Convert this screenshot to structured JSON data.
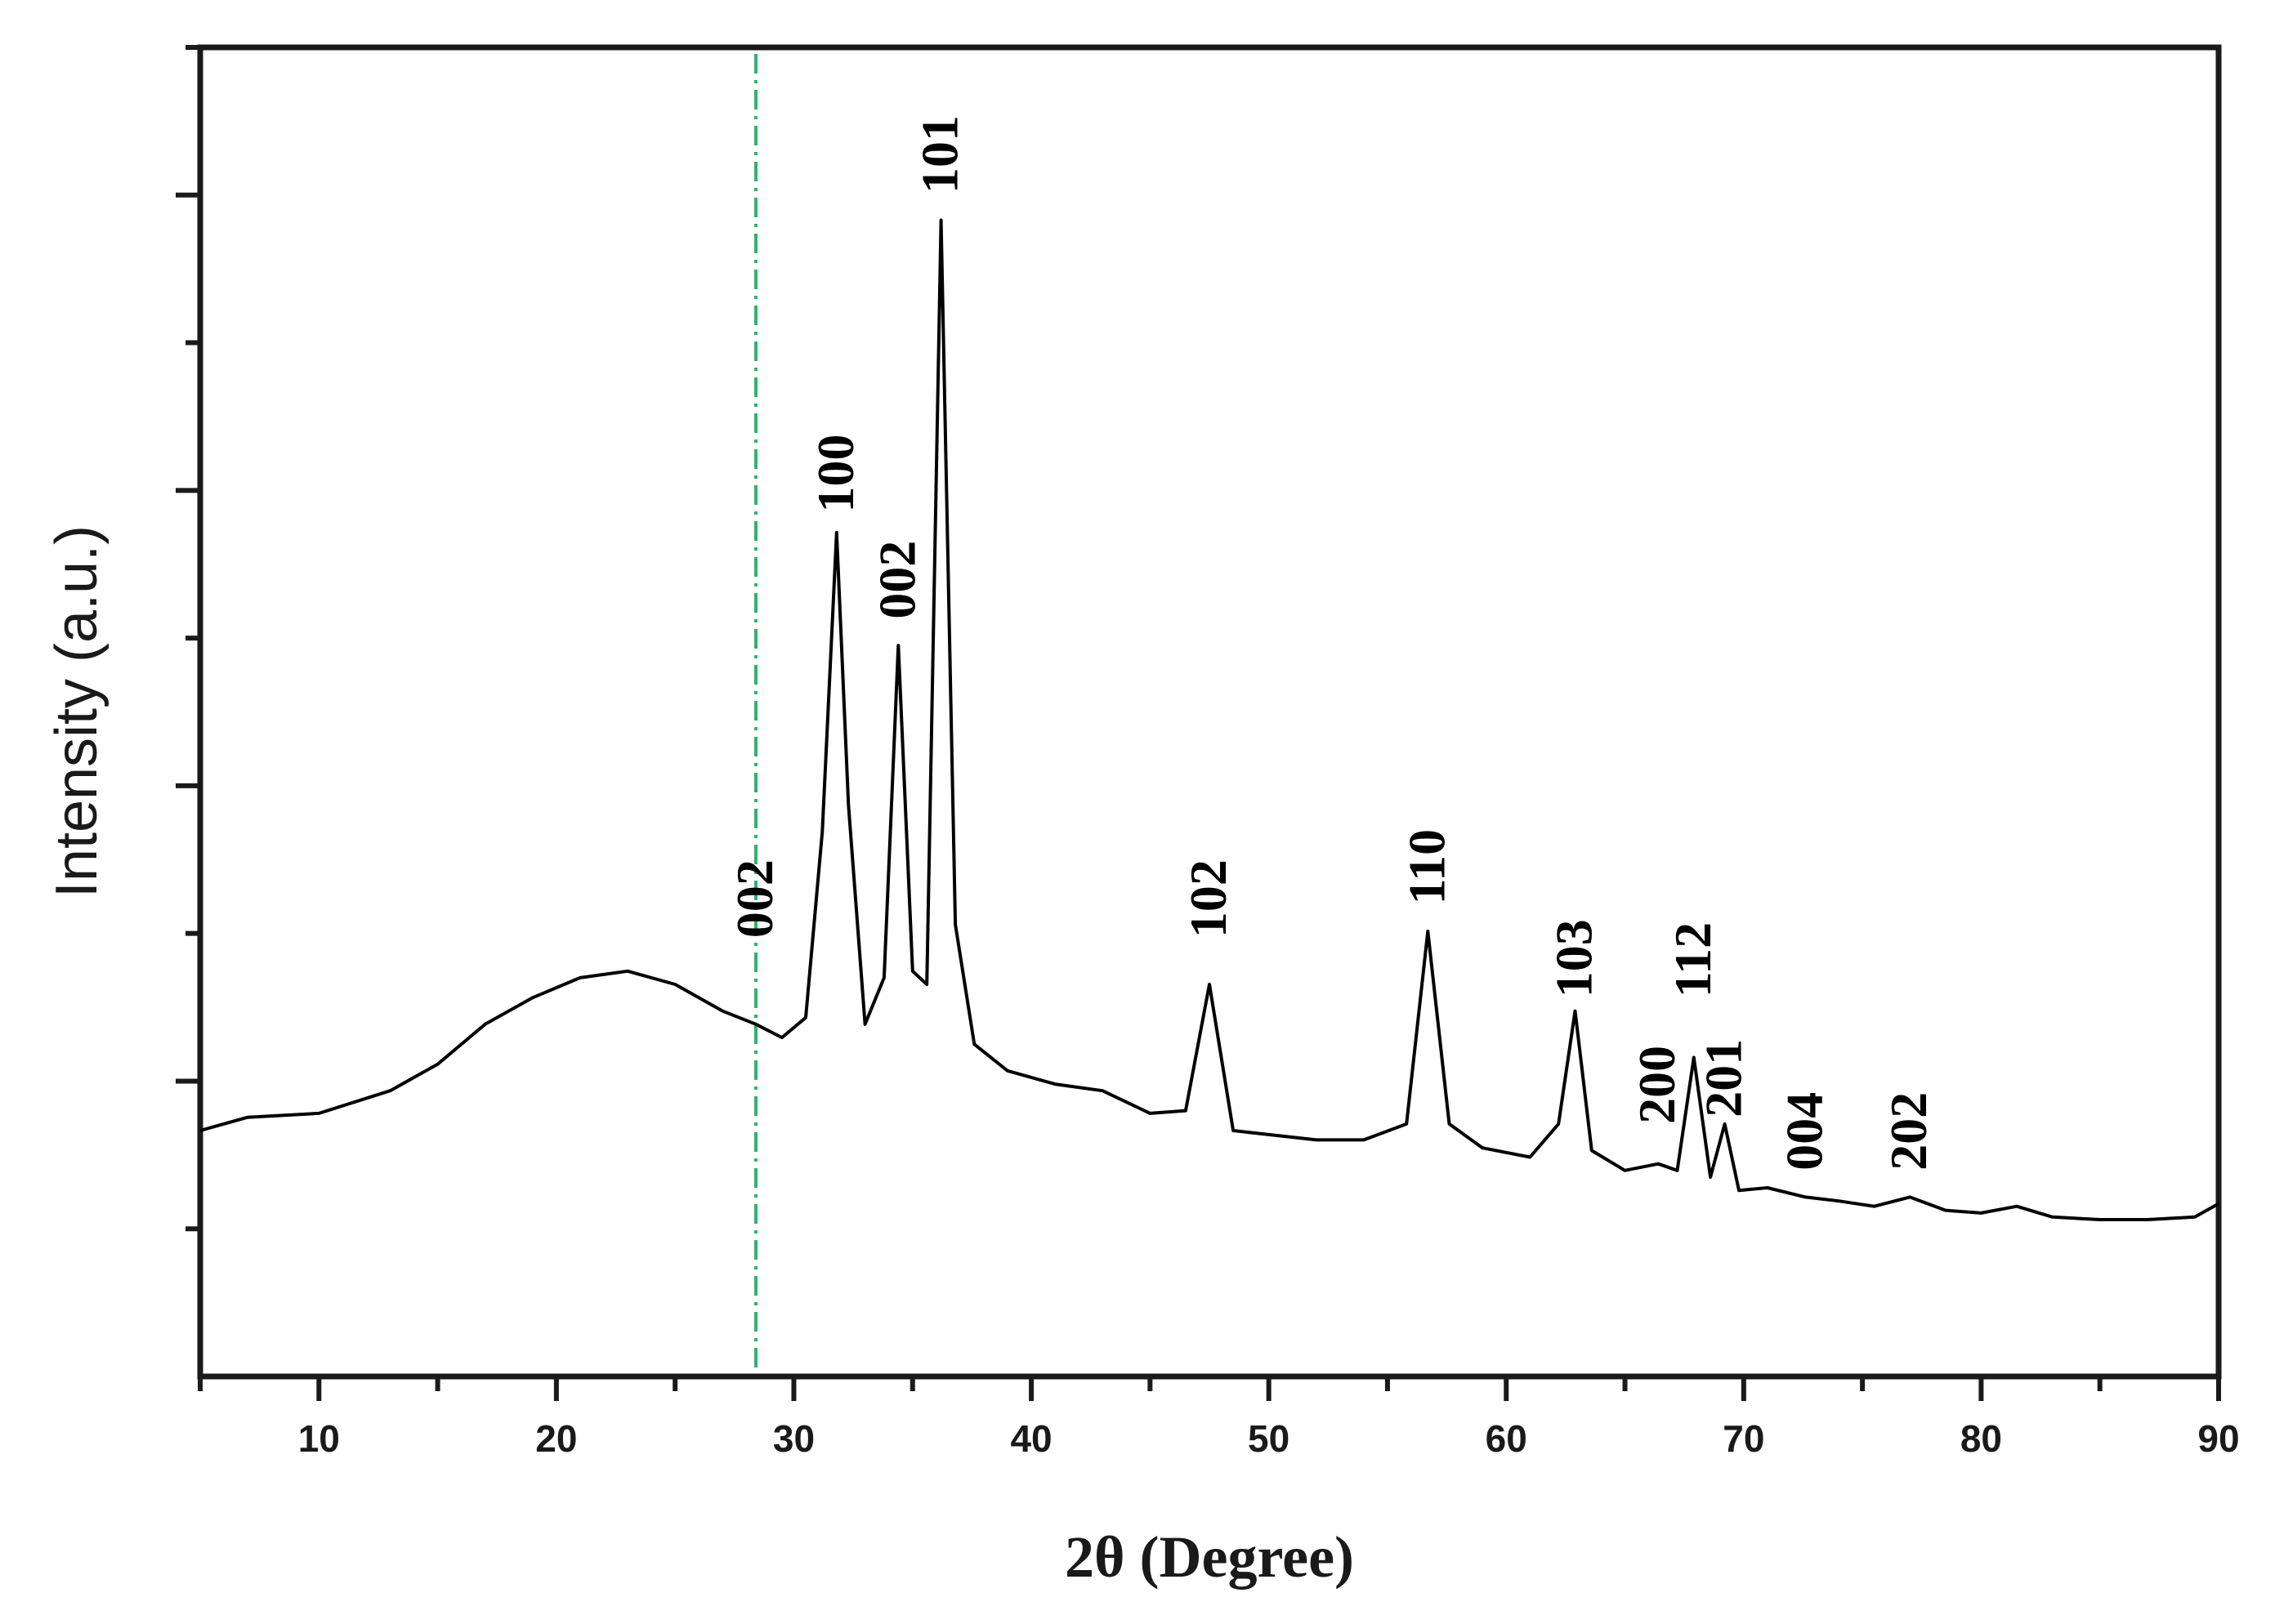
{
  "chart_data": {
    "type": "line",
    "title": "",
    "xlabel": "2θ (Degree)",
    "ylabel": "Intensity (a.u.)",
    "xlim": [
      5,
      90
    ],
    "ylim": [
      0,
      100
    ],
    "x_ticks": [
      10,
      20,
      30,
      40,
      50,
      60,
      70,
      80,
      90
    ],
    "y_tick_labels_shown": false,
    "grid": false,
    "legend": "none",
    "line_color": "#000000",
    "reference_line": {
      "x": 28.4,
      "style": "dash-dot",
      "color": "#2fb36b"
    },
    "series": [
      {
        "x": [
          5,
          7,
          10,
          13,
          15,
          17,
          19,
          21,
          23,
          25,
          27,
          28.4,
          29.5,
          30.5,
          31.2,
          31.8,
          32.3,
          33,
          33.8,
          34.4,
          35,
          35.6,
          36.2,
          36.8,
          37.6,
          39,
          41,
          43,
          45,
          46.5,
          47.5,
          48.5,
          50,
          52,
          54,
          55.8,
          56.7,
          57.6,
          59,
          61,
          62.2,
          62.9,
          63.6,
          65,
          66.4,
          67.2,
          67.9,
          68.6,
          69.2,
          69.8,
          71,
          72.6,
          74,
          75.5,
          77,
          78.5,
          80,
          81.5,
          83,
          85,
          87,
          89,
          90
        ],
        "y": [
          18.5,
          19.5,
          19.8,
          21.5,
          23.5,
          26.5,
          28.5,
          30,
          30.5,
          29.5,
          27.5,
          26.5,
          25.5,
          27,
          41,
          63.5,
          43,
          26.5,
          30,
          55,
          30.5,
          29.5,
          87,
          34,
          25,
          23,
          22,
          21.5,
          19.8,
          20,
          29.5,
          18.5,
          18.2,
          17.8,
          17.8,
          19,
          33.5,
          19,
          17.2,
          16.5,
          19,
          27.5,
          17,
          15.5,
          16,
          15.5,
          24,
          15,
          19,
          14,
          14.2,
          13.5,
          13.2,
          12.8,
          13.5,
          12.5,
          12.3,
          12.8,
          12,
          11.8,
          11.8,
          12,
          13
        ]
      }
    ],
    "annotations": [
      {
        "label": "002",
        "x": 28.4,
        "y": 33
      },
      {
        "label": "100",
        "x": 31.8,
        "y": 65
      },
      {
        "label": "002",
        "x": 34.4,
        "y": 57
      },
      {
        "label": "101",
        "x": 36.2,
        "y": 89
      },
      {
        "label": "102",
        "x": 47.5,
        "y": 33
      },
      {
        "label": "110",
        "x": 56.7,
        "y": 35.5
      },
      {
        "label": "103",
        "x": 62.9,
        "y": 28.5
      },
      {
        "label": "200",
        "x": 66.4,
        "y": 19
      },
      {
        "label": "112",
        "x": 67.9,
        "y": 28.5
      },
      {
        "label": "201",
        "x": 69.2,
        "y": 19.5
      },
      {
        "label": "004",
        "x": 72.6,
        "y": 15.5
      },
      {
        "label": "202",
        "x": 77,
        "y": 15.5
      }
    ]
  }
}
